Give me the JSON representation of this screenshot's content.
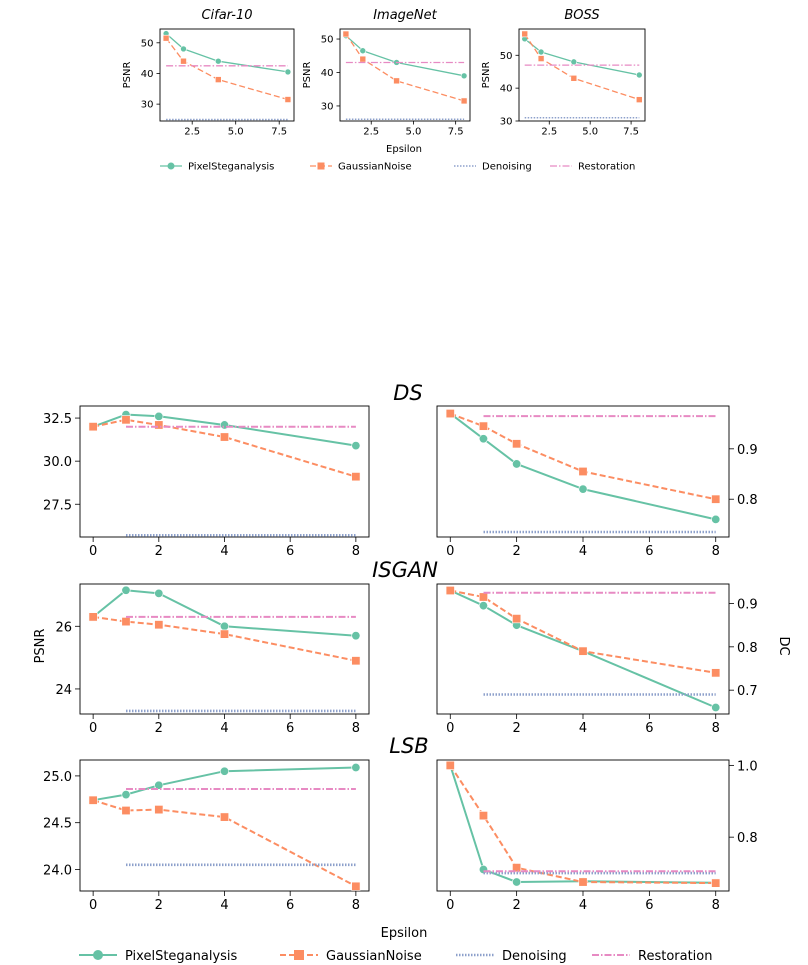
{
  "series_names": [
    "PixelSteganalysis",
    "GaussianNoise",
    "Denoising",
    "Restoration"
  ],
  "colors": {
    "PixelSteganalysis": "#66c2a5",
    "GaussianNoise": "#fc8d62",
    "Denoising": "#8da0cb",
    "Restoration": "#e78ac3"
  },
  "top_figure": {
    "xlabel": "Epsilon",
    "ylabel": "PSNR"
  },
  "bottom_figure": {
    "xlabel": "Epsilon",
    "ylabel_left": "PSNR",
    "ylabel_right": "DC",
    "section_titles": [
      "DS",
      "ISGAN",
      "LSB"
    ]
  },
  "chart_data": [
    {
      "type": "line",
      "group": "top",
      "title": "Cifar-10",
      "xlabel": "",
      "ylabel": "PSNR",
      "xlim": [
        0.65,
        8.35
      ],
      "ylim": [
        24.5,
        54.5
      ],
      "xticks": [
        2.5,
        5.0,
        7.5
      ],
      "xtick_labels": [
        "2.5",
        "5.0",
        "7.5"
      ],
      "yticks": [
        30,
        40,
        50
      ],
      "ytick_labels": [
        "30",
        "40",
        "50"
      ],
      "x": [
        1,
        2,
        4,
        8
      ],
      "series": [
        {
          "name": "PixelSteganalysis",
          "values": [
            53,
            48,
            44,
            40.5
          ]
        },
        {
          "name": "GaussianNoise",
          "values": [
            51.5,
            44,
            38,
            31.5
          ]
        },
        {
          "name": "Denoising",
          "values": [
            25,
            25,
            25,
            25
          ]
        },
        {
          "name": "Restoration",
          "values": [
            42.5,
            42.5,
            42.5,
            42.5
          ]
        }
      ]
    },
    {
      "type": "line",
      "group": "top",
      "title": "ImageNet",
      "xlabel": "Epsilon",
      "ylabel": "PSNR",
      "xlim": [
        0.65,
        8.35
      ],
      "ylim": [
        25.5,
        53
      ],
      "xticks": [
        2.5,
        5.0,
        7.5
      ],
      "xtick_labels": [
        "2.5",
        "5.0",
        "7.5"
      ],
      "yticks": [
        30,
        40,
        50
      ],
      "ytick_labels": [
        "30",
        "40",
        "50"
      ],
      "x": [
        1,
        2,
        4,
        8
      ],
      "series": [
        {
          "name": "PixelSteganalysis",
          "values": [
            51,
            46.5,
            43,
            39
          ]
        },
        {
          "name": "GaussianNoise",
          "values": [
            51.5,
            44,
            37.5,
            31.5
          ]
        },
        {
          "name": "Denoising",
          "values": [
            26,
            26,
            26,
            26
          ]
        },
        {
          "name": "Restoration",
          "values": [
            43,
            43,
            43,
            43
          ]
        }
      ]
    },
    {
      "type": "line",
      "group": "top",
      "title": "BOSS",
      "xlabel": "",
      "ylabel": "PSNR",
      "xlim": [
        0.65,
        8.35
      ],
      "ylim": [
        30,
        58
      ],
      "xticks": [
        2.5,
        5.0,
        7.5
      ],
      "xtick_labels": [
        "2.5",
        "5.0",
        "7.5"
      ],
      "yticks": [
        30,
        40,
        50
      ],
      "ytick_labels": [
        "30",
        "40",
        "50"
      ],
      "x": [
        1,
        2,
        4,
        8
      ],
      "series": [
        {
          "name": "PixelSteganalysis",
          "values": [
            55,
            51,
            48,
            44
          ]
        },
        {
          "name": "GaussianNoise",
          "values": [
            56.5,
            49,
            43,
            36.5
          ]
        },
        {
          "name": "Denoising",
          "values": [
            31,
            31,
            31,
            31
          ]
        },
        {
          "name": "Restoration",
          "values": [
            47,
            47,
            47,
            47
          ]
        }
      ]
    },
    {
      "type": "line",
      "group": "bottom",
      "section": "DS",
      "metric": "PSNR",
      "xlim": [
        -0.4,
        8.4
      ],
      "ylim": [
        25.6,
        33.2
      ],
      "xticks": [
        0,
        2,
        4,
        6,
        8
      ],
      "xtick_labels": [
        "0",
        "2",
        "4",
        "6",
        "8"
      ],
      "yticks": [
        27.5,
        30.0,
        32.5
      ],
      "ytick_labels": [
        "27.5",
        "30.0",
        "32.5"
      ],
      "x": [
        0,
        1,
        2,
        4,
        8
      ],
      "series": [
        {
          "name": "PixelSteganalysis",
          "values": [
            32.0,
            32.7,
            32.6,
            32.1,
            30.9
          ]
        },
        {
          "name": "GaussianNoise",
          "values": [
            32.0,
            32.4,
            32.1,
            31.4,
            29.1
          ]
        },
        {
          "name": "Denoising",
          "x": [
            1,
            8
          ],
          "values": [
            25.7,
            25.7
          ]
        },
        {
          "name": "Restoration",
          "x": [
            1,
            8
          ],
          "values": [
            32.0,
            32.0
          ]
        }
      ]
    },
    {
      "type": "line",
      "group": "bottom",
      "section": "DS",
      "metric": "DC",
      "xlim": [
        -0.4,
        8.4
      ],
      "ylim": [
        0.725,
        0.985
      ],
      "xticks": [
        0,
        2,
        4,
        6,
        8
      ],
      "xtick_labels": [
        "0",
        "2",
        "4",
        "6",
        "8"
      ],
      "yticks": [
        0.8,
        0.9
      ],
      "ytick_labels": [
        "0.8",
        "0.9"
      ],
      "x": [
        0,
        1,
        2,
        4,
        8
      ],
      "series": [
        {
          "name": "PixelSteganalysis",
          "values": [
            0.97,
            0.92,
            0.87,
            0.82,
            0.76
          ]
        },
        {
          "name": "GaussianNoise",
          "values": [
            0.97,
            0.945,
            0.91,
            0.855,
            0.8
          ]
        },
        {
          "name": "Denoising",
          "x": [
            1,
            8
          ],
          "values": [
            0.735,
            0.735
          ]
        },
        {
          "name": "Restoration",
          "x": [
            1,
            8
          ],
          "values": [
            0.965,
            0.965
          ]
        }
      ]
    },
    {
      "type": "line",
      "group": "bottom",
      "section": "ISGAN",
      "metric": "PSNR",
      "xlim": [
        -0.4,
        8.4
      ],
      "ylim": [
        23.2,
        27.35
      ],
      "xticks": [
        0,
        2,
        4,
        6,
        8
      ],
      "xtick_labels": [
        "0",
        "2",
        "4",
        "6",
        "8"
      ],
      "yticks": [
        24,
        26
      ],
      "ytick_labels": [
        "24",
        "26"
      ],
      "x": [
        0,
        1,
        2,
        4,
        8
      ],
      "series": [
        {
          "name": "PixelSteganalysis",
          "values": [
            26.3,
            27.15,
            27.05,
            26.0,
            25.7
          ]
        },
        {
          "name": "GaussianNoise",
          "values": [
            26.3,
            26.15,
            26.05,
            25.75,
            24.9
          ]
        },
        {
          "name": "Denoising",
          "x": [
            1,
            8
          ],
          "values": [
            23.3,
            23.3
          ]
        },
        {
          "name": "Restoration",
          "x": [
            1,
            8
          ],
          "values": [
            26.3,
            26.3
          ]
        }
      ]
    },
    {
      "type": "line",
      "group": "bottom",
      "section": "ISGAN",
      "metric": "DC",
      "xlim": [
        -0.4,
        8.4
      ],
      "ylim": [
        0.645,
        0.945
      ],
      "xticks": [
        0,
        2,
        4,
        6,
        8
      ],
      "xtick_labels": [
        "0",
        "2",
        "4",
        "6",
        "8"
      ],
      "yticks": [
        0.7,
        0.8,
        0.9
      ],
      "ytick_labels": [
        "0.7",
        "0.8",
        "0.9"
      ],
      "x": [
        0,
        1,
        2,
        4,
        8
      ],
      "series": [
        {
          "name": "PixelSteganalysis",
          "values": [
            0.93,
            0.895,
            0.85,
            0.79,
            0.66
          ]
        },
        {
          "name": "GaussianNoise",
          "values": [
            0.93,
            0.915,
            0.865,
            0.79,
            0.74
          ]
        },
        {
          "name": "Denoising",
          "x": [
            1,
            8
          ],
          "values": [
            0.69,
            0.69
          ]
        },
        {
          "name": "Restoration",
          "x": [
            1,
            8
          ],
          "values": [
            0.925,
            0.925
          ]
        }
      ]
    },
    {
      "type": "line",
      "group": "bottom",
      "section": "LSB",
      "metric": "PSNR",
      "xlim": [
        -0.4,
        8.4
      ],
      "ylim": [
        23.77,
        25.17
      ],
      "xticks": [
        0,
        2,
        4,
        6,
        8
      ],
      "xtick_labels": [
        "0",
        "2",
        "4",
        "6",
        "8"
      ],
      "yticks": [
        24.0,
        24.5,
        25.0
      ],
      "ytick_labels": [
        "24.0",
        "24.5",
        "25.0"
      ],
      "x": [
        0,
        1,
        2,
        4,
        8
      ],
      "series": [
        {
          "name": "PixelSteganalysis",
          "values": [
            24.74,
            24.8,
            24.9,
            25.05,
            25.09
          ]
        },
        {
          "name": "GaussianNoise",
          "values": [
            24.74,
            24.63,
            24.64,
            24.56,
            23.82
          ]
        },
        {
          "name": "Denoising",
          "x": [
            1,
            8
          ],
          "values": [
            24.05,
            24.05
          ]
        },
        {
          "name": "Restoration",
          "x": [
            1,
            8
          ],
          "values": [
            24.86,
            24.86
          ]
        }
      ]
    },
    {
      "type": "line",
      "group": "bottom",
      "section": "LSB",
      "metric": "DC",
      "xlim": [
        -0.4,
        8.4
      ],
      "ylim": [
        0.65,
        1.015
      ],
      "xticks": [
        0,
        2,
        4,
        6,
        8
      ],
      "xtick_labels": [
        "0",
        "2",
        "4",
        "6",
        "8"
      ],
      "yticks": [
        0.8,
        1.0
      ],
      "ytick_labels": [
        "0.8",
        "1.0"
      ],
      "x": [
        0,
        1,
        2,
        4,
        8
      ],
      "series": [
        {
          "name": "PixelSteganalysis",
          "values": [
            1.0,
            0.71,
            0.675,
            0.677,
            0.673
          ]
        },
        {
          "name": "GaussianNoise",
          "values": [
            1.0,
            0.86,
            0.715,
            0.675,
            0.672
          ]
        },
        {
          "name": "Denoising",
          "x": [
            1,
            8
          ],
          "values": [
            0.7,
            0.7
          ]
        },
        {
          "name": "Restoration",
          "x": [
            1,
            8
          ],
          "values": [
            0.705,
            0.705
          ]
        }
      ]
    }
  ]
}
